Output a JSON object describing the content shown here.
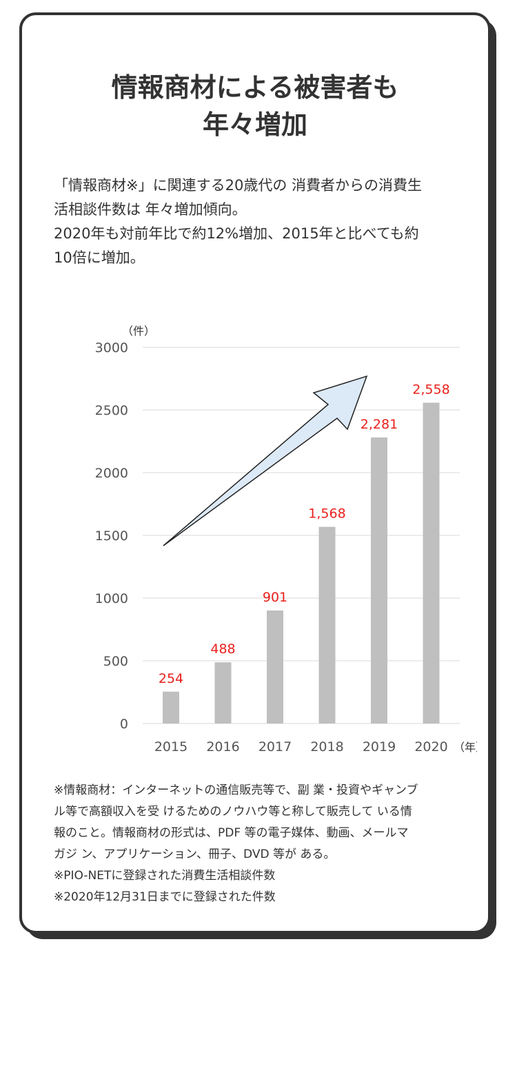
{
  "title": {
    "line1": "情報商材による被害者も",
    "line2": "年々増加"
  },
  "lead": {
    "line1": "「情報商材※」に関連する20歳代の 消費者からの消費生",
    "line2": "活相談件数は 年々増加傾向。",
    "line3": "2020年も対前年比で約12%増加、2015年と比べても約",
    "line4": "10倍に増加。"
  },
  "chart_data": {
    "type": "bar",
    "categories": [
      "2015",
      "2016",
      "2017",
      "2018",
      "2019",
      "2020"
    ],
    "values": [
      254,
      488,
      901,
      1568,
      2281,
      2558
    ],
    "data_labels": [
      "254",
      "488",
      "901",
      "1,568",
      "2,281",
      "2,558"
    ],
    "y_unit": "（件）",
    "x_unit": "（年）",
    "ylim": [
      0,
      3000
    ],
    "yticks": [
      0,
      500,
      1000,
      1500,
      2000,
      2500,
      3000
    ],
    "grid": true,
    "bar_color": "#bfbfbf",
    "label_color": "#e8211c",
    "arrow_fill": "#dce9f6"
  },
  "notes": {
    "line1": "※情報商材：インターネットの通信販売等で、副 業・投資やギャンブ",
    "line2": "ル等で高額収入を受 けるためのノウハウ等と称して販売して いる情",
    "line3": "報のこと。情報商材の形式は、PDF 等の電子媒体、動画、メールマ",
    "line4": "ガジ ン、アプリケーション、冊子、DVD 等が ある。",
    "line5": "※PIO-NETに登録された消費生活相談件数",
    "line6": "※2020年12月31日までに登録された件数"
  }
}
